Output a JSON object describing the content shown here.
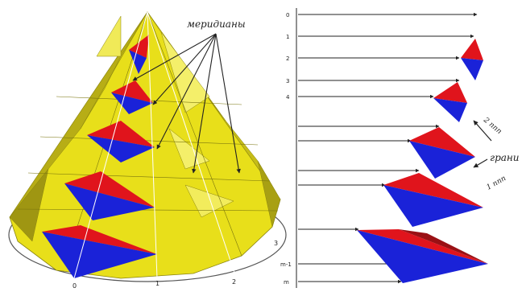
{
  "labels": {
    "meridians": "меридианы",
    "face": "грани",
    "row1": "1 ппп",
    "row2": "2 ппп",
    "base_left": [
      "0",
      "1",
      "2",
      "3"
    ],
    "right_axis": [
      "0",
      "1",
      "2",
      "3",
      "4",
      "m-1",
      "m"
    ]
  },
  "colors": {
    "yellow": "#e8df1a",
    "yellow_light": "#f4ef6a",
    "yellow_dark": "#9f9612",
    "red": "#e0141c",
    "blue": "#1a22d8",
    "line": "#222222"
  }
}
